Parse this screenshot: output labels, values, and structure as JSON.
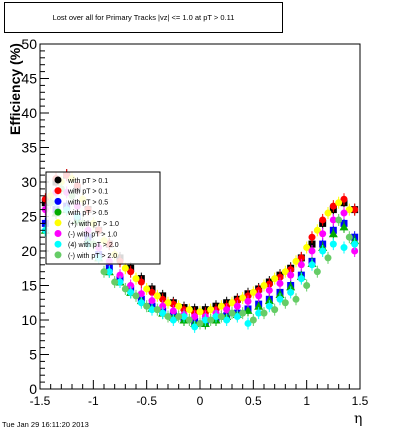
{
  "chart_data": {
    "type": "scatter",
    "title": "Lost over all for Primary Tracks |vz| <= 1.0 at pT > 0.11",
    "xlabel": "η",
    "ylabel": "Efficiency (%)",
    "xlim": [
      -1.5,
      1.5
    ],
    "ylim": [
      0,
      50
    ],
    "x_ticks": [
      "-1.5",
      "-1",
      "-0.5",
      "0",
      "0.5",
      "1",
      "1.5"
    ],
    "y_ticks": [
      "0",
      "5",
      "10",
      "15",
      "20",
      "25",
      "30",
      "35",
      "40",
      "45",
      "50"
    ],
    "grid": false,
    "legend_position": "upper-left inside",
    "legend": [
      {
        "label": "with pT > 0.1",
        "color": "#000000"
      },
      {
        "label": "with pT > 0.1",
        "color": "#ff0000"
      },
      {
        "label": "with pT > 0.5",
        "color": "#0000ff"
      },
      {
        "label": "with pT > 0.5",
        "color": "#00aa00"
      },
      {
        "label": "(+) with pT > 1.0",
        "color": "#ffff00"
      },
      {
        "label": "(-) with pT > 1.0",
        "color": "#ff00ff"
      },
      {
        "label": "(4) with pT > 2.0",
        "color": "#00ffff"
      },
      {
        "label": "(-) with pT > 2.0",
        "color": "#66cc66"
      }
    ],
    "series": [
      {
        "color": "#000000",
        "shape": "square",
        "x": [
          -1.45,
          -1.35,
          -1.25,
          -1.15,
          -1.05,
          -0.95,
          -0.85,
          -0.75,
          -0.65,
          -0.55,
          -0.45,
          -0.35,
          -0.25,
          -0.15,
          -0.05,
          0.05,
          0.15,
          0.25,
          0.35,
          0.45,
          0.55,
          0.65,
          0.75,
          0.85,
          0.95,
          1.05,
          1.15,
          1.25,
          1.35,
          1.45
        ],
        "y": [
          27,
          30,
          31,
          29,
          26,
          23,
          21,
          19,
          17.5,
          16,
          14.5,
          13.5,
          12.5,
          11.8,
          11.5,
          11.5,
          12,
          12.5,
          13,
          13.8,
          14.5,
          15.5,
          16.5,
          17.5,
          19,
          21,
          24,
          26,
          27,
          26
        ]
      },
      {
        "color": "#ff0000",
        "shape": "circle",
        "x": [
          -1.45,
          -1.35,
          -1.25,
          -1.15,
          -1.05,
          -0.95,
          -0.85,
          -0.75,
          -0.65,
          -0.55,
          -0.45,
          -0.35,
          -0.25,
          -0.15,
          -0.05,
          0.05,
          0.15,
          0.25,
          0.35,
          0.45,
          0.55,
          0.65,
          0.75,
          0.85,
          0.95,
          1.05,
          1.15,
          1.25,
          1.35,
          1.45
        ],
        "y": [
          27.5,
          30.5,
          31,
          29.5,
          26,
          23,
          21,
          18.5,
          17,
          15.5,
          14,
          13,
          12.3,
          11.5,
          11,
          11,
          11.5,
          12,
          12.8,
          13.5,
          14.3,
          15.2,
          16.2,
          17.3,
          19,
          22,
          24.5,
          26.5,
          27.5,
          26
        ]
      },
      {
        "color": "#0000ff",
        "shape": "square",
        "x": [
          -1.45,
          -1.35,
          -1.25,
          -1.15,
          -1.05,
          -0.95,
          -0.85,
          -0.75,
          -0.65,
          -0.55,
          -0.45,
          -0.35,
          -0.25,
          -0.15,
          -0.05,
          0.05,
          0.15,
          0.25,
          0.35,
          0.45,
          0.55,
          0.65,
          0.75,
          0.85,
          0.95,
          1.05,
          1.15,
          1.25,
          1.35,
          1.45
        ],
        "y": [
          24,
          26,
          26.5,
          25,
          22,
          19.5,
          17.5,
          16,
          14.5,
          13,
          12,
          11.3,
          10.7,
          10.2,
          9.8,
          9.8,
          10.2,
          10.6,
          11,
          11.6,
          12.3,
          13,
          14,
          15,
          16.5,
          18.5,
          21,
          23,
          24,
          22
        ]
      },
      {
        "color": "#00aa00",
        "shape": "triangle",
        "x": [
          -1.45,
          -1.35,
          -1.25,
          -1.15,
          -1.05,
          -0.95,
          -0.85,
          -0.75,
          -0.65,
          -0.55,
          -0.45,
          -0.35,
          -0.25,
          -0.15,
          -0.05,
          0.05,
          0.15,
          0.25,
          0.35,
          0.45,
          0.55,
          0.65,
          0.75,
          0.85,
          0.95,
          1.05,
          1.15,
          1.25,
          1.35,
          1.45
        ],
        "y": [
          23,
          25.5,
          26,
          24.5,
          21.5,
          19,
          17,
          15.5,
          14,
          12.8,
          11.7,
          11,
          10.4,
          10,
          9.5,
          9.5,
          10,
          10.5,
          10.8,
          11.4,
          12,
          12.8,
          13.7,
          14.8,
          16.3,
          18.2,
          20.5,
          22.5,
          23.5,
          21.5
        ]
      },
      {
        "color": "#ffff00",
        "shape": "circle",
        "x": [
          -1.4,
          -1.3,
          -1.2,
          -1.1,
          -1.0,
          -0.9,
          -0.8,
          -0.7,
          -0.6,
          -0.5,
          -0.4,
          -0.3,
          -0.2,
          -0.1,
          0.0,
          0.1,
          0.2,
          0.3,
          0.4,
          0.5,
          0.6,
          0.7,
          0.8,
          0.9,
          1.0,
          1.1,
          1.2,
          1.3,
          1.4
        ],
        "y": [
          28,
          30,
          30.5,
          27.5,
          24,
          21.5,
          19.5,
          17.5,
          16,
          14.5,
          13.5,
          12.5,
          12,
          11.5,
          11.2,
          11.5,
          12,
          12.5,
          13.2,
          14,
          15,
          16,
          17,
          18.5,
          20.5,
          23,
          25.5,
          27,
          26
        ]
      },
      {
        "color": "#ff00ff",
        "shape": "circle",
        "x": [
          -1.45,
          -1.35,
          -1.25,
          -1.15,
          -1.05,
          -0.95,
          -0.85,
          -0.75,
          -0.65,
          -0.55,
          -0.45,
          -0.35,
          -0.25,
          -0.15,
          -0.05,
          0.05,
          0.15,
          0.25,
          0.35,
          0.45,
          0.55,
          0.65,
          0.75,
          0.85,
          0.95,
          1.05,
          1.15,
          1.25,
          1.35,
          1.45
        ],
        "y": [
          26,
          28.5,
          28.5,
          26.5,
          23,
          20.5,
          18.5,
          16.5,
          15,
          13.8,
          12.8,
          12,
          11.3,
          10.8,
          10.5,
          10.5,
          11,
          11.5,
          12,
          12.7,
          13.5,
          14.3,
          15.3,
          16.5,
          18,
          20,
          22.5,
          24.5,
          25.5,
          20
        ]
      },
      {
        "color": "#00ffff",
        "shape": "circle",
        "x": [
          -1.45,
          -1.35,
          -1.25,
          -1.15,
          -1.05,
          -0.95,
          -0.85,
          -0.75,
          -0.65,
          -0.55,
          -0.45,
          -0.35,
          -0.25,
          -0.15,
          -0.05,
          0.05,
          0.15,
          0.25,
          0.35,
          0.45,
          0.55,
          0.65,
          0.75,
          0.85,
          0.95,
          1.05,
          1.15,
          1.25,
          1.35,
          1.45
        ],
        "y": [
          23,
          27,
          26,
          25,
          21,
          19,
          17,
          15.5,
          14,
          12.5,
          11.5,
          11,
          10,
          10.5,
          9,
          10,
          10.5,
          10,
          10.5,
          9.5,
          11,
          12,
          13,
          14,
          16,
          18,
          20,
          21,
          20.5,
          21
        ]
      },
      {
        "color": "#66cc66",
        "shape": "circle",
        "x": [
          -1.4,
          -1.3,
          -1.2,
          -1.1,
          -1.0,
          -0.9,
          -0.8,
          -0.7,
          -0.6,
          -0.5,
          -0.4,
          -0.3,
          -0.2,
          -0.1,
          0.0,
          0.1,
          0.2,
          0.3,
          0.4,
          0.5,
          0.6,
          0.7,
          0.8,
          0.9,
          1.0,
          1.1,
          1.2,
          1.3,
          1.4
        ],
        "y": [
          27,
          29,
          28,
          24,
          21,
          17,
          15.5,
          14.5,
          13.5,
          12,
          11.5,
          10.5,
          10.5,
          10,
          9.5,
          10,
          10.5,
          11,
          11,
          10,
          11,
          11.5,
          12.5,
          13,
          15,
          17,
          19,
          24.5,
          22
        ]
      }
    ]
  },
  "footer": {
    "timestamp": "Tue Jan 29 16:11:20 2013"
  }
}
